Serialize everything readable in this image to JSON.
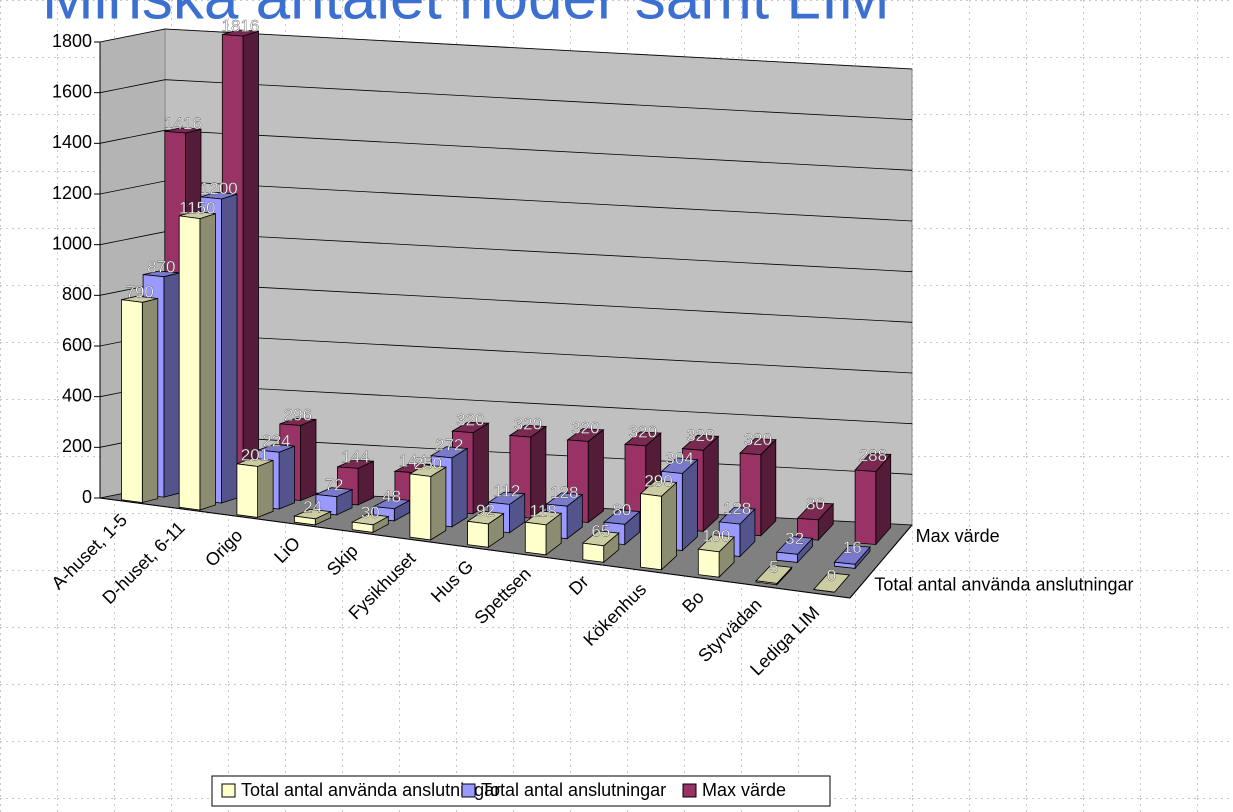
{
  "chart_data": {
    "type": "bar3d",
    "title": "Minska antalet noder samt LIM",
    "categories": [
      "A-huset, 1-5",
      "D-huset, 6-11",
      "Origo",
      "LiO",
      "Skip",
      "Fysikhuset",
      "Hus G",
      "Spettsen",
      "Dr",
      "Kökenhus",
      "Bo",
      "Styrvädan",
      "Lediga LIM"
    ],
    "series": [
      {
        "name": "Total antal använda anslutningar",
        "color": "#ffffcc",
        "values": [
          790,
          1150,
          201,
          24,
          30,
          250,
          92,
          118,
          65,
          290,
          100,
          5,
          0
        ]
      },
      {
        "name": "Total antal anslutningar",
        "color": "#9999ff",
        "values": [
          870,
          1200,
          224,
          72,
          48,
          272,
          112,
          128,
          80,
          304,
          128,
          32,
          16
        ]
      },
      {
        "name": "Max värde",
        "color": "#993366",
        "values": [
          1416,
          1816,
          296,
          144,
          144,
          320,
          320,
          320,
          320,
          320,
          320,
          80,
          288
        ]
      }
    ],
    "ylim": [
      0,
      1800
    ],
    "yticks": [
      0,
      200,
      400,
      600,
      800,
      1000,
      1200,
      1400,
      1600,
      1800
    ],
    "grid": true
  }
}
